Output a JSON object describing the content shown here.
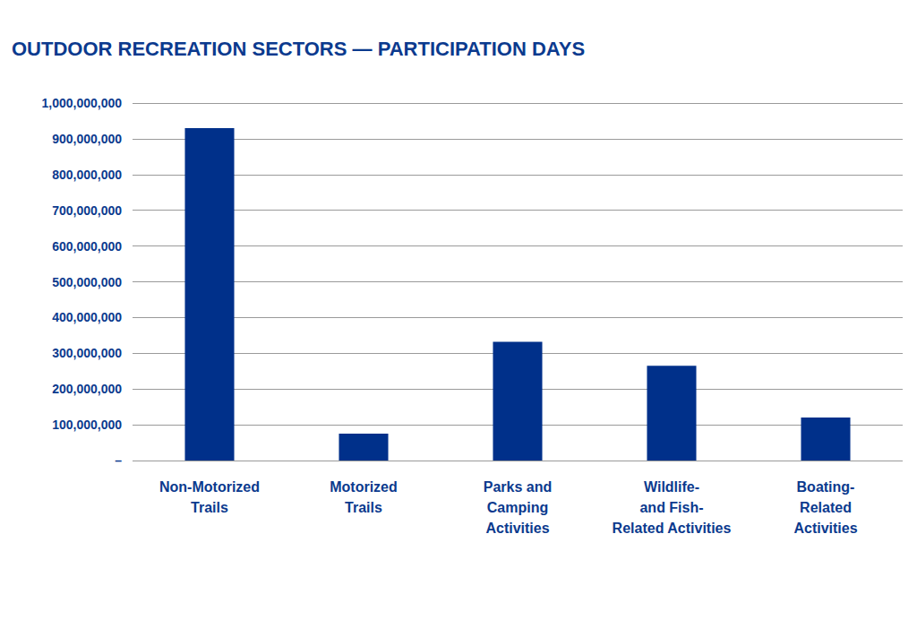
{
  "chart_data": {
    "type": "bar",
    "title": "OUTDOOR RECREATION SECTORS — PARTICIPATION DAYS",
    "categories": [
      "Non-Motorized\nTrails",
      "Motorized\nTrails",
      "Parks and\nCamping\nActivities",
      "Wildlife-\nand Fish-\nRelated Activities",
      "Boating-\nRelated\nActivities"
    ],
    "values": [
      930000000,
      75000000,
      332000000,
      265000000,
      120000000
    ],
    "color": "#00308a",
    "ylim": [
      0,
      1000000000
    ],
    "yticks": [
      {
        "value": 0,
        "label": "–"
      },
      {
        "value": 100000000,
        "label": "100,000,000"
      },
      {
        "value": 200000000,
        "label": "200,000,000"
      },
      {
        "value": 300000000,
        "label": "300,000,000"
      },
      {
        "value": 400000000,
        "label": "400,000,000"
      },
      {
        "value": 500000000,
        "label": "500,000,000"
      },
      {
        "value": 600000000,
        "label": "600,000,000"
      },
      {
        "value": 700000000,
        "label": "700,000,000"
      },
      {
        "value": 800000000,
        "label": "800,000,000"
      },
      {
        "value": 900000000,
        "label": "900,000,000"
      },
      {
        "value": 1000000000,
        "label": "1,000,000,000"
      }
    ],
    "grid": true
  }
}
